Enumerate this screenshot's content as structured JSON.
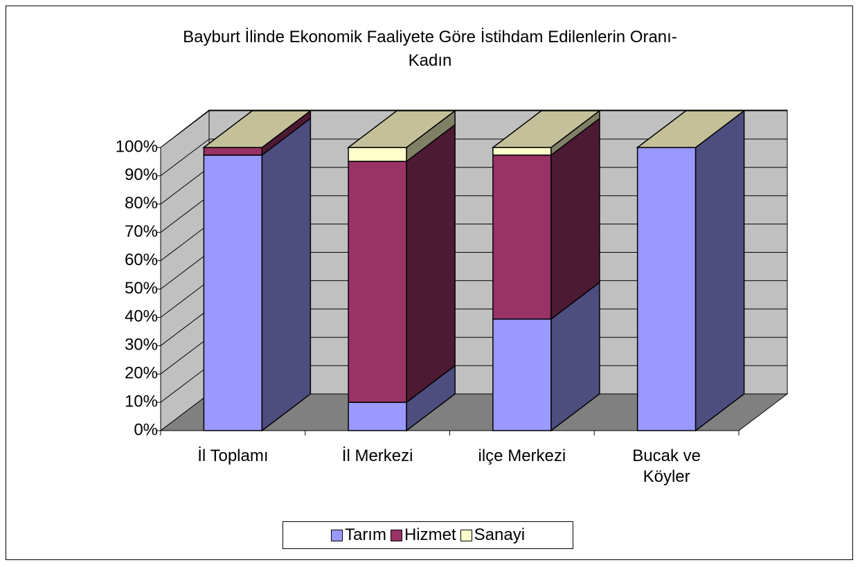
{
  "chart_data": {
    "type": "bar3d_stacked",
    "title": [
      "Bayburt İlinde Ekonomik Faaliyete Göre İstihdam Edilenlerin Oranı-",
      "Kadın"
    ],
    "categories": [
      "İl Toplamı",
      "İl Merkezi",
      "ilçe Merkezi",
      "Bucak ve Köyler"
    ],
    "series": [
      {
        "name": "Tarım",
        "color": "#9999ff",
        "values": [
          97.3,
          10,
          39.4,
          100
        ]
      },
      {
        "name": "Hizmet",
        "color": "#993366",
        "values": [
          2.7,
          85.1,
          57.9,
          0
        ]
      },
      {
        "name": "Sanayi",
        "color": "#ffffcc",
        "values": [
          0,
          4.9,
          2.7,
          0
        ]
      }
    ],
    "ylim": [
      0,
      100
    ],
    "yticks": [
      {
        "value": 0,
        "label": "0%"
      },
      {
        "value": 10,
        "label": "10%"
      },
      {
        "value": 20,
        "label": "20%"
      },
      {
        "value": 30,
        "label": "30%"
      },
      {
        "value": 40,
        "label": "40%"
      },
      {
        "value": 50,
        "label": "50%"
      },
      {
        "value": 60,
        "label": "60%"
      },
      {
        "value": 70,
        "label": "70%"
      },
      {
        "value": 80,
        "label": "80%"
      },
      {
        "value": 90,
        "label": "90%"
      },
      {
        "value": 100,
        "label": "100%"
      }
    ],
    "grid": true,
    "legend": "bottom"
  }
}
